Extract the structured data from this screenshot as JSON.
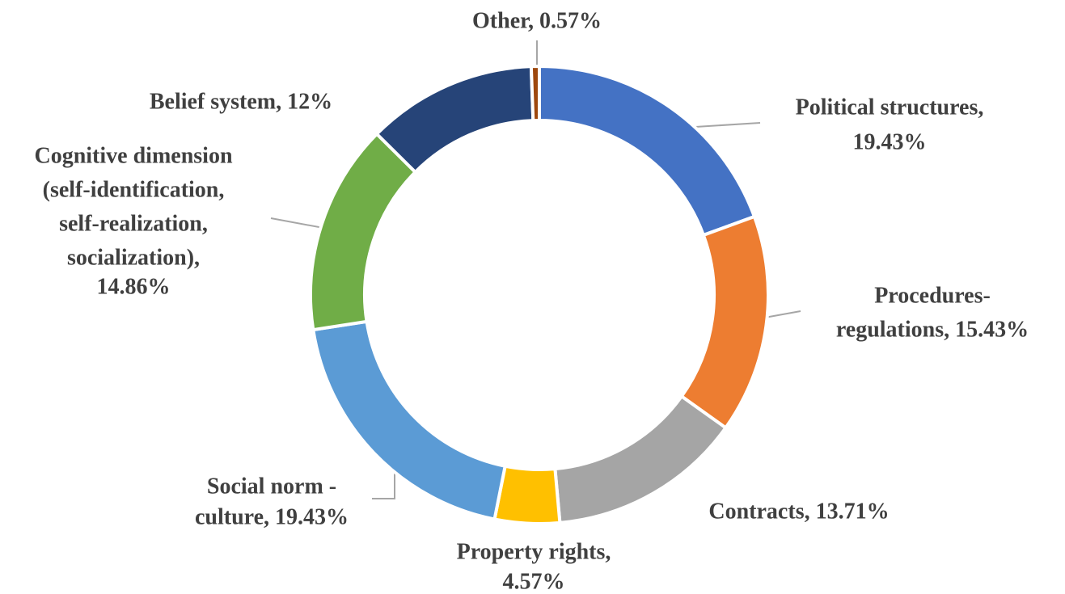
{
  "chart_data": {
    "type": "donut",
    "values": [
      19.43,
      15.43,
      13.71,
      4.57,
      19.43,
      14.86,
      12,
      0.57
    ],
    "value_labels": [
      [
        "Political structures,",
        "19.43%"
      ],
      [
        "Procedures-",
        "regulations, 15.43%"
      ],
      [
        "Contracts, 13.71%"
      ],
      [
        "Property rights,",
        "4.57%"
      ],
      [
        "Social norm -",
        "culture, 19.43%"
      ],
      [
        "Cognitive dimension",
        "(self-identification,",
        "self-realization,",
        "socialization),",
        "14.86%"
      ],
      [
        "Belief system, 12%"
      ],
      [
        "Other, 0.57%"
      ]
    ],
    "colors": [
      "#4472c4",
      "#ed7d31",
      "#a5a5a5",
      "#ffc000",
      "#5b9bd5",
      "#70ad47",
      "#264478",
      "#9e480e"
    ]
  }
}
